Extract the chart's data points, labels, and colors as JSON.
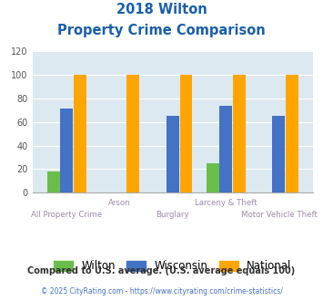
{
  "title_line1": "2018 Wilton",
  "title_line2": "Property Crime Comparison",
  "categories": [
    "All Property Crime",
    "Arson",
    "Burglary",
    "Larceny & Theft",
    "Motor Vehicle Theft"
  ],
  "wilton": [
    18,
    0,
    0,
    25,
    0
  ],
  "wisconsin": [
    71,
    0,
    65,
    74,
    65
  ],
  "national": [
    100,
    100,
    100,
    100,
    100
  ],
  "wilton_color": "#6abf4b",
  "wisconsin_color": "#4472c4",
  "national_color": "#ffa500",
  "bg_color": "#dce9f0",
  "ylim": [
    0,
    120
  ],
  "yticks": [
    0,
    20,
    40,
    60,
    80,
    100,
    120
  ],
  "title_color": "#1a5fa8",
  "xlabel_color": "#9e8aaa",
  "legend_labels": [
    "Wilton",
    "Wisconsin",
    "National"
  ],
  "footnote1": "Compared to U.S. average. (U.S. average equals 100)",
  "footnote2": "© 2025 CityRating.com - https://www.cityrating.com/crime-statistics/",
  "footnote1_color": "#333333",
  "footnote2_color": "#4472c4"
}
